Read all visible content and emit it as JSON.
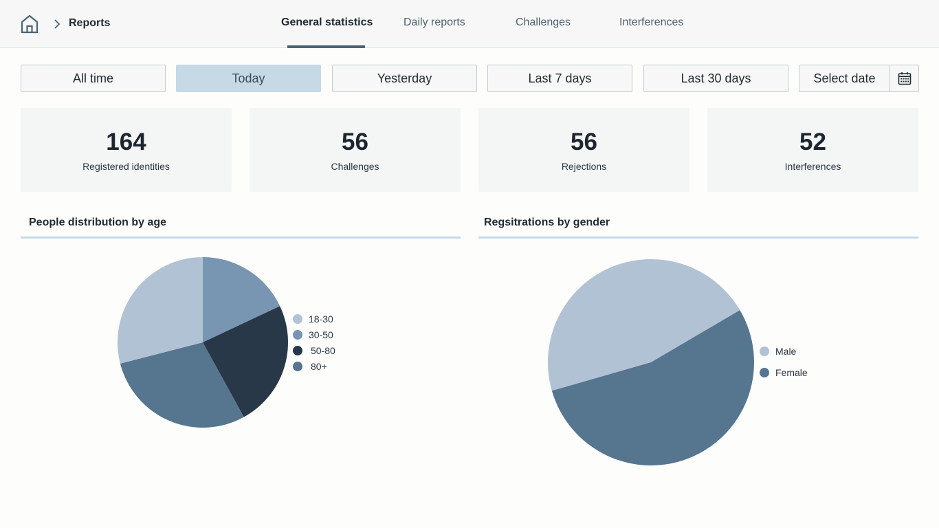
{
  "breadcrumb": {
    "label": "Reports"
  },
  "tabs": [
    {
      "label": "General statistics",
      "active": true
    },
    {
      "label": "Daily reports"
    },
    {
      "label": "Challenges"
    },
    {
      "label": "Interferences"
    }
  ],
  "filters": [
    {
      "label": "All time"
    },
    {
      "label": "Today",
      "active": true
    },
    {
      "label": "Yesterday"
    },
    {
      "label": "Last 7 days"
    },
    {
      "label": "Last 30 days"
    }
  ],
  "date_picker": {
    "label": "Select date"
  },
  "stats": [
    {
      "value": "164",
      "label": "Registered identities"
    },
    {
      "value": "56",
      "label": "Challenges"
    },
    {
      "value": "56",
      "label": "Rejections"
    },
    {
      "value": "52",
      "label": "Interferences"
    }
  ],
  "colors": {
    "light": "#b1c2d4",
    "mid": "#7896b1",
    "dark": "#283849",
    "slate": "#56758f",
    "accent": "#c6d9e7"
  },
  "chart_data": [
    {
      "type": "pie",
      "title": "People distribution by age",
      "categories": [
        "18-30",
        "30-50",
        "50-80",
        "80+"
      ],
      "values": [
        29,
        18,
        24,
        29
      ],
      "colors": [
        "#b1c2d4",
        "#7896b1",
        "#283849",
        "#56758f"
      ],
      "slice_order": [
        "30-50",
        "50-80",
        "80+",
        "18-30"
      ],
      "legend": "right"
    },
    {
      "type": "pie",
      "title": "Regsitrations by gender",
      "categories": [
        "Male",
        "Female"
      ],
      "values": [
        46,
        54
      ],
      "colors": [
        "#b1c2d4",
        "#56758f"
      ],
      "legend": "right"
    }
  ]
}
